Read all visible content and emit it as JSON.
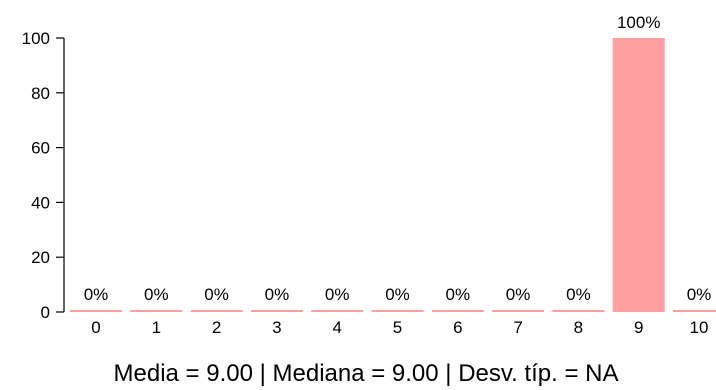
{
  "chart_data": {
    "type": "bar",
    "categories": [
      "0",
      "1",
      "2",
      "3",
      "4",
      "5",
      "6",
      "7",
      "8",
      "9",
      "10"
    ],
    "values": [
      0,
      0,
      0,
      0,
      0,
      0,
      0,
      0,
      0,
      100,
      0
    ],
    "data_labels": [
      "0%",
      "0%",
      "0%",
      "0%",
      "0%",
      "0%",
      "0%",
      "0%",
      "0%",
      "100%",
      "0%"
    ],
    "title": "",
    "xlabel": "",
    "ylabel": "",
    "ylim": [
      0,
      100
    ],
    "yticks": [
      "0",
      "20",
      "40",
      "60",
      "80",
      "100"
    ],
    "grid": false,
    "bar_color": "#ff9f9f",
    "summary": "Media =  9.00  | Mediana =  9.00  | Desv. típ. =  NA"
  }
}
